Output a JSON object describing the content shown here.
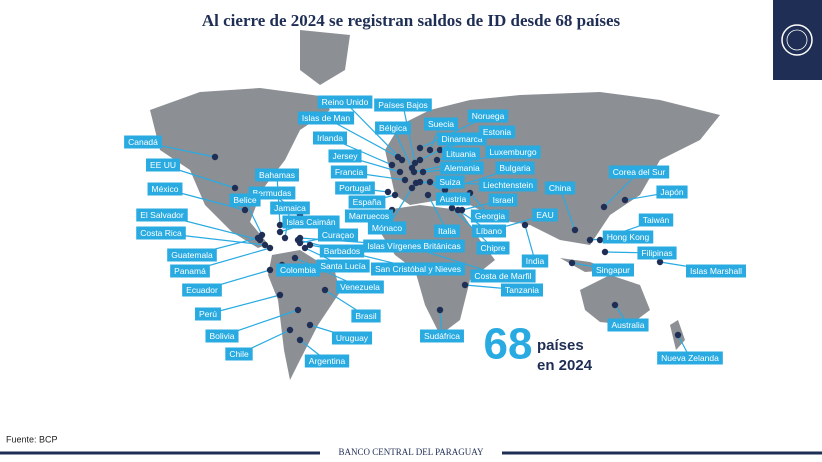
{
  "title": "Al cierre de 2024 se registran saldos de ID desde 68 países",
  "locations": [
    {
      "label": "Canadá"
    },
    {
      "label": "EE UU"
    },
    {
      "label": "México"
    },
    {
      "label": "Bahamas"
    },
    {
      "label": "Bermudas"
    },
    {
      "label": "Belice"
    },
    {
      "label": "Jamaica"
    },
    {
      "label": "El Salvador"
    },
    {
      "label": "Islas Caimán"
    },
    {
      "label": "Costa Rica"
    },
    {
      "label": "Curaçao"
    },
    {
      "label": "Guatemala"
    },
    {
      "label": "Barbados"
    },
    {
      "label": "Panamá"
    },
    {
      "label": "Colombia"
    },
    {
      "label": "Santa Lucía"
    },
    {
      "label": "San Cristóbal y Nieves"
    },
    {
      "label": "Ecuador"
    },
    {
      "label": "Venezuela"
    },
    {
      "label": "Perú"
    },
    {
      "label": "Brasil"
    },
    {
      "label": "Bolivia"
    },
    {
      "label": "Uruguay"
    },
    {
      "label": "Chile"
    },
    {
      "label": "Argentina"
    },
    {
      "label": "Reino Unido"
    },
    {
      "label": "Países Bajos"
    },
    {
      "label": "Islas de Man"
    },
    {
      "label": "Irlanda"
    },
    {
      "label": "Bélgica"
    },
    {
      "label": "Suecia"
    },
    {
      "label": "Noruega"
    },
    {
      "label": "Dinamarca"
    },
    {
      "label": "Estonia"
    },
    {
      "label": "Jersey"
    },
    {
      "label": "Lituania"
    },
    {
      "label": "Luxemburgo"
    },
    {
      "label": "Francia"
    },
    {
      "label": "Alemania"
    },
    {
      "label": "Bulgaria"
    },
    {
      "label": "Portugal"
    },
    {
      "label": "Suiza"
    },
    {
      "label": "Liechtenstein"
    },
    {
      "label": "España"
    },
    {
      "label": "Austria"
    },
    {
      "label": "Israel"
    },
    {
      "label": "Marruecos"
    },
    {
      "label": "Georgia"
    },
    {
      "label": "Mónaco"
    },
    {
      "label": "Italia"
    },
    {
      "label": "Líbano"
    },
    {
      "label": "Islas Vírgenes Británicas"
    },
    {
      "label": "Chipre"
    },
    {
      "label": "India"
    },
    {
      "label": "Costa de Marfil"
    },
    {
      "label": "Tanzania"
    },
    {
      "label": "Sudáfrica"
    },
    {
      "label": "China"
    },
    {
      "label": "EAU"
    },
    {
      "label": "Corea del Sur"
    },
    {
      "label": "Japón"
    },
    {
      "label": "Taiwán"
    },
    {
      "label": "Hong Kong"
    },
    {
      "label": "Filipinas"
    },
    {
      "label": "Singapur"
    },
    {
      "label": "Islas Marshall"
    },
    {
      "label": "Australia"
    },
    {
      "label": "Nueva Zelanda"
    }
  ],
  "callout": {
    "number": 68,
    "line1": "países",
    "line2": "en 2024"
  },
  "footer": {
    "source": "Fuente: BCP",
    "bank": "BANCO CENTRAL DEL PARAGUAY"
  }
}
